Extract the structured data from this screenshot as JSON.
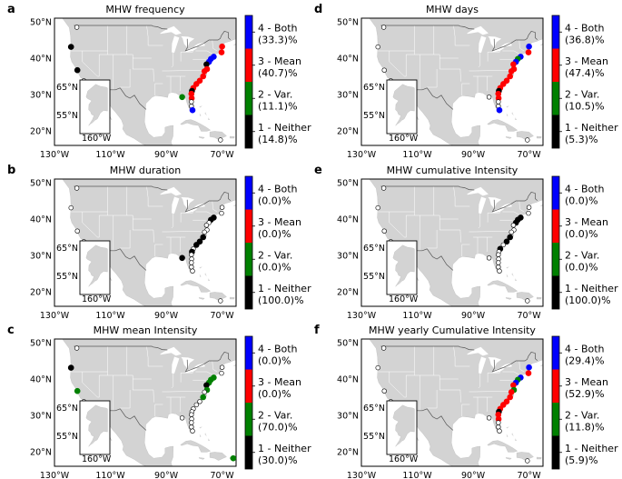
{
  "chart_data": [
    {
      "type": "map",
      "panel": "a",
      "title": "MHW frequency",
      "legend": [
        {
          "line1": "4 - Both",
          "line2": "(33.3)%",
          "color": "#0000ff"
        },
        {
          "line1": "3 - Mean",
          "line2": "(40.7)%",
          "color": "#ff0000"
        },
        {
          "line1": "2 - Var.",
          "line2": "(11.1)%",
          "color": "#008000"
        },
        {
          "line1": "1 - Neither",
          "line2": "(14.8)%",
          "color": "#000000"
        }
      ],
      "points": [
        {
          "lon": -124.1,
          "lat": 43.1,
          "cat": 1
        },
        {
          "lon": -121.8,
          "lat": 36.7,
          "cat": 1
        },
        {
          "lon": -122.0,
          "lat": 48.5,
          "cat": 0
        },
        {
          "lon": -119.5,
          "lat": 33.8,
          "cat": 0
        },
        {
          "lon": -117.5,
          "lat": 32.8,
          "cat": 0
        },
        {
          "lon": -70.0,
          "lat": 43.2,
          "cat": 3
        },
        {
          "lon": -70.2,
          "lat": 41.6,
          "cat": 3
        },
        {
          "lon": -73.0,
          "lat": 40.4,
          "cat": 4
        },
        {
          "lon": -74.0,
          "lat": 39.8,
          "cat": 4
        },
        {
          "lon": -74.7,
          "lat": 39.0,
          "cat": 4
        },
        {
          "lon": -75.6,
          "lat": 38.3,
          "cat": 1
        },
        {
          "lon": -75.4,
          "lat": 37.0,
          "cat": 3
        },
        {
          "lon": -76.3,
          "lat": 36.4,
          "cat": 3
        },
        {
          "lon": -76.8,
          "lat": 35.0,
          "cat": 3
        },
        {
          "lon": -78.0,
          "lat": 33.8,
          "cat": 3
        },
        {
          "lon": -79.2,
          "lat": 32.9,
          "cat": 3
        },
        {
          "lon": -80.3,
          "lat": 31.8,
          "cat": 3
        },
        {
          "lon": -80.8,
          "lat": 31.0,
          "cat": 1
        },
        {
          "lon": -81.0,
          "lat": 30.2,
          "cat": 3
        },
        {
          "lon": -80.9,
          "lat": 29.0,
          "cat": 3
        },
        {
          "lon": -84.3,
          "lat": 29.3,
          "cat": 2
        },
        {
          "lon": -81.0,
          "lat": 28.0,
          "cat": 0
        },
        {
          "lon": -81.0,
          "lat": 26.8,
          "cat": 0
        },
        {
          "lon": -80.6,
          "lat": 25.7,
          "cat": 4
        },
        {
          "lon": -70.6,
          "lat": 17.5,
          "cat": 0
        }
      ]
    },
    {
      "type": "map",
      "panel": "d",
      "title": "MHW days",
      "legend": [
        {
          "line1": "4 - Both",
          "line2": "(36.8)%",
          "color": "#0000ff"
        },
        {
          "line1": "3 - Mean",
          "line2": "(47.4)%",
          "color": "#ff0000"
        },
        {
          "line1": "2 - Var.",
          "line2": "(10.5)%",
          "color": "#008000"
        },
        {
          "line1": "1 - Neither",
          "line2": "(5.3)%",
          "color": "#000000"
        }
      ],
      "points": [
        {
          "lon": -124.1,
          "lat": 43.1,
          "cat": 0
        },
        {
          "lon": -121.8,
          "lat": 36.7,
          "cat": 0
        },
        {
          "lon": -122.0,
          "lat": 48.5,
          "cat": 0
        },
        {
          "lon": -119.5,
          "lat": 33.8,
          "cat": 0
        },
        {
          "lon": -117.5,
          "lat": 32.8,
          "cat": 0
        },
        {
          "lon": -70.0,
          "lat": 43.2,
          "cat": 4
        },
        {
          "lon": -70.2,
          "lat": 41.6,
          "cat": 3
        },
        {
          "lon": -73.0,
          "lat": 40.4,
          "cat": 4
        },
        {
          "lon": -74.0,
          "lat": 39.8,
          "cat": 2
        },
        {
          "lon": -74.7,
          "lat": 39.0,
          "cat": 4
        },
        {
          "lon": -75.6,
          "lat": 38.3,
          "cat": 3
        },
        {
          "lon": -75.4,
          "lat": 37.0,
          "cat": 3
        },
        {
          "lon": -76.3,
          "lat": 36.4,
          "cat": 3
        },
        {
          "lon": -76.8,
          "lat": 35.0,
          "cat": 3
        },
        {
          "lon": -78.0,
          "lat": 33.8,
          "cat": 3
        },
        {
          "lon": -79.2,
          "lat": 32.9,
          "cat": 3
        },
        {
          "lon": -80.3,
          "lat": 31.8,
          "cat": 3
        },
        {
          "lon": -80.8,
          "lat": 31.0,
          "cat": 1
        },
        {
          "lon": -81.0,
          "lat": 30.2,
          "cat": 3
        },
        {
          "lon": -80.9,
          "lat": 29.0,
          "cat": 3
        },
        {
          "lon": -84.3,
          "lat": 29.3,
          "cat": 0
        },
        {
          "lon": -81.0,
          "lat": 28.0,
          "cat": 0
        },
        {
          "lon": -81.0,
          "lat": 26.8,
          "cat": 0
        },
        {
          "lon": -80.6,
          "lat": 25.7,
          "cat": 4
        },
        {
          "lon": -70.6,
          "lat": 17.5,
          "cat": 0
        }
      ]
    },
    {
      "type": "map",
      "panel": "b",
      "title": "MHW duration",
      "legend": [
        {
          "line1": "4 - Both",
          "line2": "(0.0)%",
          "color": "#0000ff"
        },
        {
          "line1": "3 - Mean",
          "line2": "(0.0)%",
          "color": "#ff0000"
        },
        {
          "line1": "2 - Var.",
          "line2": "(0.0)%",
          "color": "#008000"
        },
        {
          "line1": "1 - Neither",
          "line2": "(100.0)%",
          "color": "#000000"
        }
      ],
      "points": [
        {
          "lon": -124.1,
          "lat": 43.1,
          "cat": 0
        },
        {
          "lon": -121.8,
          "lat": 36.7,
          "cat": 0
        },
        {
          "lon": -122.0,
          "lat": 48.5,
          "cat": 0
        },
        {
          "lon": -119.5,
          "lat": 33.8,
          "cat": 0
        },
        {
          "lon": -117.5,
          "lat": 32.8,
          "cat": 0
        },
        {
          "lon": -70.0,
          "lat": 43.2,
          "cat": 0
        },
        {
          "lon": -70.2,
          "lat": 41.6,
          "cat": 0
        },
        {
          "lon": -73.0,
          "lat": 40.4,
          "cat": 1
        },
        {
          "lon": -74.0,
          "lat": 39.8,
          "cat": 1
        },
        {
          "lon": -74.7,
          "lat": 39.0,
          "cat": 0
        },
        {
          "lon": -75.6,
          "lat": 38.3,
          "cat": 0
        },
        {
          "lon": -75.4,
          "lat": 37.0,
          "cat": 0
        },
        {
          "lon": -76.3,
          "lat": 36.4,
          "cat": 0
        },
        {
          "lon": -76.8,
          "lat": 35.0,
          "cat": 1
        },
        {
          "lon": -78.0,
          "lat": 33.8,
          "cat": 1
        },
        {
          "lon": -79.2,
          "lat": 32.9,
          "cat": 1
        },
        {
          "lon": -80.3,
          "lat": 31.8,
          "cat": 0
        },
        {
          "lon": -80.8,
          "lat": 31.0,
          "cat": 1
        },
        {
          "lon": -81.0,
          "lat": 30.2,
          "cat": 0
        },
        {
          "lon": -80.9,
          "lat": 29.0,
          "cat": 0
        },
        {
          "lon": -84.3,
          "lat": 29.3,
          "cat": 1
        },
        {
          "lon": -81.0,
          "lat": 28.0,
          "cat": 0
        },
        {
          "lon": -81.0,
          "lat": 26.8,
          "cat": 0
        },
        {
          "lon": -80.6,
          "lat": 25.7,
          "cat": 0
        },
        {
          "lon": -70.6,
          "lat": 17.5,
          "cat": 0
        }
      ]
    },
    {
      "type": "map",
      "panel": "e",
      "title": "MHW cumulative Intensity",
      "legend": [
        {
          "line1": "4 - Both",
          "line2": "(0.0)%",
          "color": "#0000ff"
        },
        {
          "line1": "3 - Mean",
          "line2": "(0.0)%",
          "color": "#ff0000"
        },
        {
          "line1": "2 - Var.",
          "line2": "(0.0)%",
          "color": "#008000"
        },
        {
          "line1": "1 - Neither",
          "line2": "(100.0)%",
          "color": "#000000"
        }
      ],
      "points": [
        {
          "lon": -124.1,
          "lat": 43.1,
          "cat": 0
        },
        {
          "lon": -121.8,
          "lat": 36.7,
          "cat": 0
        },
        {
          "lon": -122.0,
          "lat": 48.5,
          "cat": 0
        },
        {
          "lon": -119.5,
          "lat": 33.8,
          "cat": 0
        },
        {
          "lon": -117.5,
          "lat": 32.8,
          "cat": 0
        },
        {
          "lon": -70.0,
          "lat": 43.2,
          "cat": 0
        },
        {
          "lon": -70.2,
          "lat": 41.6,
          "cat": 0
        },
        {
          "lon": -73.0,
          "lat": 40.4,
          "cat": 1
        },
        {
          "lon": -74.0,
          "lat": 39.8,
          "cat": 1
        },
        {
          "lon": -74.7,
          "lat": 39.0,
          "cat": 1
        },
        {
          "lon": -75.6,
          "lat": 38.3,
          "cat": 0
        },
        {
          "lon": -75.4,
          "lat": 37.0,
          "cat": 0
        },
        {
          "lon": -76.3,
          "lat": 36.4,
          "cat": 0
        },
        {
          "lon": -76.8,
          "lat": 35.0,
          "cat": 1
        },
        {
          "lon": -78.0,
          "lat": 33.8,
          "cat": 1
        },
        {
          "lon": -79.2,
          "lat": 32.9,
          "cat": 0
        },
        {
          "lon": -80.3,
          "lat": 31.8,
          "cat": 1
        },
        {
          "lon": -80.8,
          "lat": 31.0,
          "cat": 0
        },
        {
          "lon": -81.0,
          "lat": 30.2,
          "cat": 0
        },
        {
          "lon": -80.9,
          "lat": 29.0,
          "cat": 0
        },
        {
          "lon": -84.3,
          "lat": 29.3,
          "cat": 0
        },
        {
          "lon": -81.0,
          "lat": 28.0,
          "cat": 0
        },
        {
          "lon": -81.0,
          "lat": 26.8,
          "cat": 0
        },
        {
          "lon": -80.6,
          "lat": 25.7,
          "cat": 0
        },
        {
          "lon": -70.6,
          "lat": 17.5,
          "cat": 0
        }
      ]
    },
    {
      "type": "map",
      "panel": "c",
      "title": "MHW mean Intensity",
      "legend": [
        {
          "line1": "4 - Both",
          "line2": "(0.0)%",
          "color": "#0000ff"
        },
        {
          "line1": "3 - Mean",
          "line2": "(0.0)%",
          "color": "#ff0000"
        },
        {
          "line1": "2 - Var.",
          "line2": "(70.0)%",
          "color": "#008000"
        },
        {
          "line1": "1 - Neither",
          "line2": "(30.0)%",
          "color": "#000000"
        }
      ],
      "points": [
        {
          "lon": -124.1,
          "lat": 43.1,
          "cat": 1
        },
        {
          "lon": -121.8,
          "lat": 36.7,
          "cat": 2
        },
        {
          "lon": -122.0,
          "lat": 48.5,
          "cat": 0
        },
        {
          "lon": -119.5,
          "lat": 33.8,
          "cat": 0
        },
        {
          "lon": -117.5,
          "lat": 32.8,
          "cat": 0
        },
        {
          "lon": -70.0,
          "lat": 43.2,
          "cat": 0
        },
        {
          "lon": -70.2,
          "lat": 41.6,
          "cat": 0
        },
        {
          "lon": -73.0,
          "lat": 40.4,
          "cat": 2
        },
        {
          "lon": -74.0,
          "lat": 39.8,
          "cat": 2
        },
        {
          "lon": -74.7,
          "lat": 39.0,
          "cat": 2
        },
        {
          "lon": -75.6,
          "lat": 38.3,
          "cat": 1
        },
        {
          "lon": -75.4,
          "lat": 37.0,
          "cat": 2
        },
        {
          "lon": -76.3,
          "lat": 36.4,
          "cat": 0
        },
        {
          "lon": -76.8,
          "lat": 35.0,
          "cat": 2
        },
        {
          "lon": -78.0,
          "lat": 33.8,
          "cat": 0
        },
        {
          "lon": -79.2,
          "lat": 32.9,
          "cat": 0
        },
        {
          "lon": -80.3,
          "lat": 31.8,
          "cat": 0
        },
        {
          "lon": -80.8,
          "lat": 31.0,
          "cat": 0
        },
        {
          "lon": -81.0,
          "lat": 30.2,
          "cat": 0
        },
        {
          "lon": -80.9,
          "lat": 29.0,
          "cat": 0
        },
        {
          "lon": -84.3,
          "lat": 29.3,
          "cat": 0
        },
        {
          "lon": -81.0,
          "lat": 28.0,
          "cat": 0
        },
        {
          "lon": -81.0,
          "lat": 26.8,
          "cat": 0
        },
        {
          "lon": -80.6,
          "lat": 25.7,
          "cat": 0
        },
        {
          "lon": -66.0,
          "lat": 18.2,
          "cat": 2
        }
      ]
    },
    {
      "type": "map",
      "panel": "f",
      "title": "MHW yearly Cumulative Intensity",
      "legend": [
        {
          "line1": "4 - Both",
          "line2": "(29.4)%",
          "color": "#0000ff"
        },
        {
          "line1": "3 - Mean",
          "line2": "(52.9)%",
          "color": "#ff0000"
        },
        {
          "line1": "2 - Var.",
          "line2": "(11.8)%",
          "color": "#008000"
        },
        {
          "line1": "1 - Neither",
          "line2": "(5.9)%",
          "color": "#000000"
        }
      ],
      "points": [
        {
          "lon": -124.1,
          "lat": 43.1,
          "cat": 0
        },
        {
          "lon": -121.8,
          "lat": 36.7,
          "cat": 0
        },
        {
          "lon": -122.0,
          "lat": 48.5,
          "cat": 0
        },
        {
          "lon": -119.5,
          "lat": 33.8,
          "cat": 0
        },
        {
          "lon": -117.5,
          "lat": 32.8,
          "cat": 0
        },
        {
          "lon": -70.0,
          "lat": 43.2,
          "cat": 4
        },
        {
          "lon": -70.2,
          "lat": 41.6,
          "cat": 3
        },
        {
          "lon": -73.0,
          "lat": 40.4,
          "cat": 4
        },
        {
          "lon": -74.0,
          "lat": 39.8,
          "cat": 2
        },
        {
          "lon": -74.7,
          "lat": 39.0,
          "cat": 4
        },
        {
          "lon": -75.6,
          "lat": 38.3,
          "cat": 3
        },
        {
          "lon": -75.4,
          "lat": 37.0,
          "cat": 2
        },
        {
          "lon": -76.3,
          "lat": 36.4,
          "cat": 3
        },
        {
          "lon": -76.8,
          "lat": 35.0,
          "cat": 3
        },
        {
          "lon": -78.0,
          "lat": 33.8,
          "cat": 3
        },
        {
          "lon": -79.2,
          "lat": 32.9,
          "cat": 3
        },
        {
          "lon": -80.3,
          "lat": 31.8,
          "cat": 3
        },
        {
          "lon": -80.8,
          "lat": 31.0,
          "cat": 1
        },
        {
          "lon": -81.0,
          "lat": 30.2,
          "cat": 3
        },
        {
          "lon": -80.9,
          "lat": 29.0,
          "cat": 3
        },
        {
          "lon": -84.3,
          "lat": 29.3,
          "cat": 0
        },
        {
          "lon": -81.0,
          "lat": 28.0,
          "cat": 0
        },
        {
          "lon": -81.0,
          "lat": 26.8,
          "cat": 0
        },
        {
          "lon": -80.6,
          "lat": 25.7,
          "cat": 0
        },
        {
          "lon": -70.6,
          "lat": 17.5,
          "cat": 0
        }
      ]
    }
  ],
  "axes": {
    "x_ticks": [
      "130°W",
      "110°W",
      "90°W",
      "70°W"
    ],
    "x_tick_values": [
      -130,
      -110,
      -90,
      -70
    ],
    "y_ticks": [
      "50°N",
      "40°N",
      "30°N",
      "20°N"
    ],
    "y_tick_values": [
      50,
      40,
      30,
      20
    ],
    "lon_range": [
      -130,
      -65
    ],
    "lat_range": [
      16,
      51
    ]
  },
  "inset": {
    "lat_labels": [
      "65°N",
      "55°N"
    ],
    "lon_label": "160°W"
  },
  "colors": {
    "land": "#d3d3d3",
    "border": "#555555",
    "cat0": "#ffffff",
    "cat1": "#000000",
    "cat2": "#008000",
    "cat3": "#ff0000",
    "cat4": "#0000ff"
  }
}
